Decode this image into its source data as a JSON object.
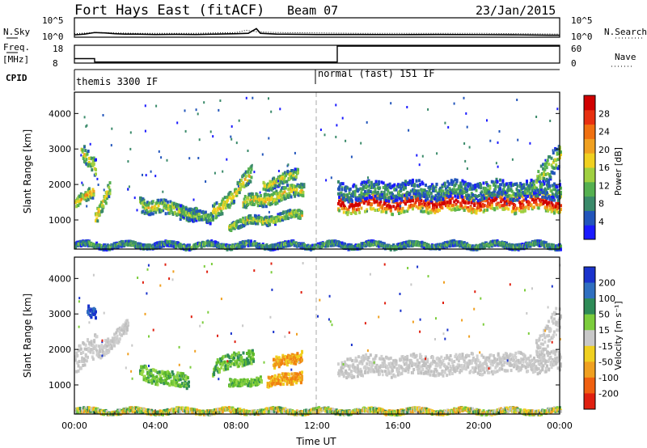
{
  "header": {
    "station": "Fort Hays East (fitACF)",
    "beam": "Beam 07",
    "date": "23/Jan/2015"
  },
  "chart_data": [
    {
      "type": "line",
      "name": "nsky-panel",
      "left_label": "N.Sky",
      "right_label": "N.Search",
      "left_ticks": [
        "10^5",
        "10^0"
      ],
      "right_ticks": [
        "10^5",
        "10^0"
      ],
      "series": [
        {
          "name": "N.Sky",
          "style": "solid",
          "x_hours": [
            0,
            0.5,
            1,
            1.5,
            2,
            2.5,
            3,
            4,
            5,
            6,
            7,
            8,
            8.6,
            9,
            9.2,
            10,
            11,
            12,
            13,
            14,
            16,
            18,
            20,
            22,
            23.5,
            24
          ],
          "log10_values": [
            0.6,
            0.8,
            1.2,
            1.1,
            0.9,
            0.8,
            0.8,
            0.7,
            0.75,
            0.7,
            0.8,
            0.9,
            1.0,
            2.2,
            1.0,
            0.8,
            0.75,
            0.7,
            0.7,
            0.7,
            0.65,
            0.7,
            0.65,
            0.6,
            0.5,
            0.5
          ]
        },
        {
          "name": "N.Search",
          "style": "dotted",
          "x_hours": [
            0,
            1,
            2,
            3,
            4,
            6,
            8,
            8.5,
            9,
            10,
            12,
            14,
            16,
            18,
            20,
            22,
            24
          ],
          "log10_values": [
            0.9,
            1.2,
            1.1,
            1.0,
            1.0,
            1.0,
            1.2,
            1.8,
            1.4,
            1.2,
            1.1,
            1.0,
            1.0,
            1.0,
            1.0,
            0.9,
            0.8
          ]
        }
      ],
      "ylim_log10": [
        0,
        5
      ]
    },
    {
      "type": "line",
      "name": "freq-panel",
      "left_label": "Freq.",
      "left_unit": "[MHz]",
      "right_label": "Nave",
      "left_ticks": [
        18,
        8
      ],
      "right_ticks": [
        60,
        0
      ],
      "series": [
        {
          "name": "Freq.",
          "style": "solid",
          "x_hours": [
            0,
            1.0,
            1.0,
            13.0,
            13.0,
            24
          ],
          "values": [
            10.5,
            10.5,
            8.6,
            8.6,
            17.5,
            17.5
          ]
        },
        {
          "name": "Nave",
          "style": "dotted",
          "x_hours": [
            0,
            24
          ],
          "values": [
            8,
            8
          ]
        }
      ],
      "ylim": [
        8,
        18
      ]
    },
    {
      "type": "table",
      "name": "cpid-strip",
      "label": "CPID",
      "segments": [
        {
          "start_hour": 0,
          "text": "themis 3300 IF"
        },
        {
          "start_hour": 12,
          "text": "normal (fast) 151 IF"
        }
      ]
    },
    {
      "type": "heatmap",
      "name": "power-panel",
      "ylabel": "Slant Range [km]",
      "yticks": [
        1000,
        2000,
        3000,
        4000
      ],
      "ylim_km": [
        180,
        4600
      ],
      "xlim_hours": [
        0,
        24
      ],
      "colorbar_label": "Power [dB]",
      "colorbar_ticks": [
        4,
        8,
        12,
        16,
        20,
        24,
        28
      ],
      "colorbar_colors": [
        "#1a1aff",
        "#2255bb",
        "#3a8a6a",
        "#55b050",
        "#a0d040",
        "#f0d020",
        "#f0a020",
        "#f07010",
        "#e83010",
        "#d00000"
      ],
      "echo_regions": [
        {
          "t0": 0.0,
          "t1": 0.9,
          "c0": 1500,
          "c1": 1800,
          "w": 150,
          "lvl": 0.55
        },
        {
          "t0": 0.3,
          "t1": 1.0,
          "c0": 2900,
          "c1": 2500,
          "w": 250,
          "lvl": 0.45
        },
        {
          "t0": 1.0,
          "t1": 1.7,
          "c0": 1100,
          "c1": 2000,
          "w": 200,
          "lvl": 0.5
        },
        {
          "t0": 3.2,
          "t1": 6.0,
          "c0": 1500,
          "c1": 1200,
          "w": 200,
          "lvl": 0.45
        },
        {
          "t0": 5.2,
          "t1": 6.8,
          "c0": 1350,
          "c1": 1000,
          "w": 150,
          "lvl": 0.35
        },
        {
          "t0": 6.8,
          "t1": 8.7,
          "c0": 1200,
          "c1": 2300,
          "w": 220,
          "lvl": 0.5
        },
        {
          "t0": 7.6,
          "t1": 11.2,
          "c0": 900,
          "c1": 1200,
          "w": 120,
          "lvl": 0.45
        },
        {
          "t0": 8.3,
          "t1": 11.3,
          "c0": 1500,
          "c1": 1900,
          "w": 180,
          "lvl": 0.5
        },
        {
          "t0": 9.3,
          "t1": 11.0,
          "c0": 2050,
          "c1": 2300,
          "w": 150,
          "lvl": 0.45
        },
        {
          "t0": 13.0,
          "t1": 24.0,
          "c0": 1500,
          "c1": 1550,
          "w": 260,
          "lvl": 0.85
        },
        {
          "t0": 13.0,
          "t1": 24.0,
          "c0": 1850,
          "c1": 1900,
          "w": 250,
          "lvl": 0.25
        },
        {
          "t0": 22.8,
          "t1": 24.0,
          "c0": 2000,
          "c1": 3000,
          "w": 350,
          "lvl": 0.4
        },
        {
          "t0": 0.0,
          "t1": 24.0,
          "c0": 330,
          "c1": 330,
          "w": 70,
          "lvl": 0.3
        }
      ]
    },
    {
      "type": "heatmap",
      "name": "velocity-panel",
      "ylabel": "Slant Range [km]",
      "yticks": [
        1000,
        2000,
        3000,
        4000
      ],
      "ylim_km": [
        180,
        4600
      ],
      "xlim_hours": [
        0,
        24
      ],
      "xticks": [
        "00:00",
        "04:00",
        "08:00",
        "12:00",
        "16:00",
        "20:00",
        "00:00"
      ],
      "xlabel": "Time UT",
      "colorbar_label": "Velocity [m s⁻¹]",
      "colorbar_ticks": [
        "200",
        "100",
        "50",
        "15",
        "-15",
        "-50",
        "-100",
        "-200"
      ],
      "colorbar_colors": [
        "#1a33cc",
        "#2f6fc0",
        "#2e8b57",
        "#7ccd3c",
        "#c8c8c8",
        "#f0d020",
        "#f0a020",
        "#f06010",
        "#e02010"
      ],
      "echo_regions": [
        {
          "t0": 0.0,
          "t1": 1.2,
          "c0": 1700,
          "c1": 2200,
          "w": 350,
          "cls": "gray"
        },
        {
          "t0": 1.2,
          "t1": 2.6,
          "c0": 2000,
          "c1": 2700,
          "w": 200,
          "cls": "gray"
        },
        {
          "t0": 0.6,
          "t1": 1.0,
          "c0": 3100,
          "c1": 3000,
          "w": 150,
          "cls": "blue"
        },
        {
          "t0": 3.2,
          "t1": 5.6,
          "c0": 1400,
          "c1": 1100,
          "w": 200,
          "cls": "green"
        },
        {
          "t0": 6.8,
          "t1": 8.8,
          "c0": 1500,
          "c1": 1900,
          "w": 200,
          "cls": "green"
        },
        {
          "t0": 7.6,
          "t1": 9.2,
          "c0": 1050,
          "c1": 1200,
          "w": 100,
          "cls": "green"
        },
        {
          "t0": 9.5,
          "t1": 11.2,
          "c0": 1100,
          "c1": 1300,
          "w": 150,
          "cls": "orange"
        },
        {
          "t0": 9.8,
          "t1": 11.2,
          "c0": 1600,
          "c1": 1900,
          "w": 150,
          "cls": "orange"
        },
        {
          "t0": 13.0,
          "t1": 24.0,
          "c0": 1550,
          "c1": 1700,
          "w": 280,
          "cls": "gray"
        },
        {
          "t0": 22.8,
          "t1": 24.0,
          "c0": 2000,
          "c1": 3000,
          "w": 350,
          "cls": "gray"
        },
        {
          "t0": 0.0,
          "t1": 24.0,
          "c0": 300,
          "c1": 300,
          "w": 60,
          "cls": "mixed"
        }
      ]
    }
  ]
}
